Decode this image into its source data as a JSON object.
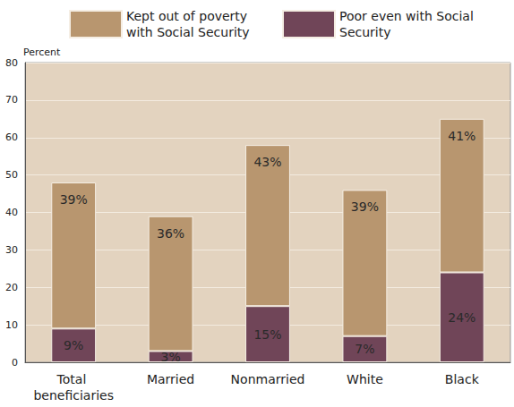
{
  "chart_data": {
    "type": "bar",
    "stacked": true,
    "data_labels": true,
    "grid": true,
    "legend": "top",
    "y_label": "Percent",
    "categories": [
      "Total beneficiaries",
      "Married",
      "Nonmarried",
      "White",
      "Black"
    ],
    "series": [
      {
        "name": "Poor even with Social Security",
        "color": "#704558",
        "values": [
          9,
          3,
          15,
          7,
          24
        ],
        "value_labels": [
          "9%",
          "3%",
          "15%",
          "7%",
          "24%"
        ]
      },
      {
        "name": "Kept out of poverty with Social Security",
        "color": "#b8966f",
        "values": [
          39,
          36,
          43,
          39,
          41
        ],
        "value_labels": [
          "39%",
          "36%",
          "43%",
          "39%",
          "41%"
        ]
      }
    ],
    "ylim": [
      0,
      80
    ],
    "yticks": [
      0,
      10,
      20,
      30,
      40,
      50,
      60,
      70,
      80
    ]
  }
}
